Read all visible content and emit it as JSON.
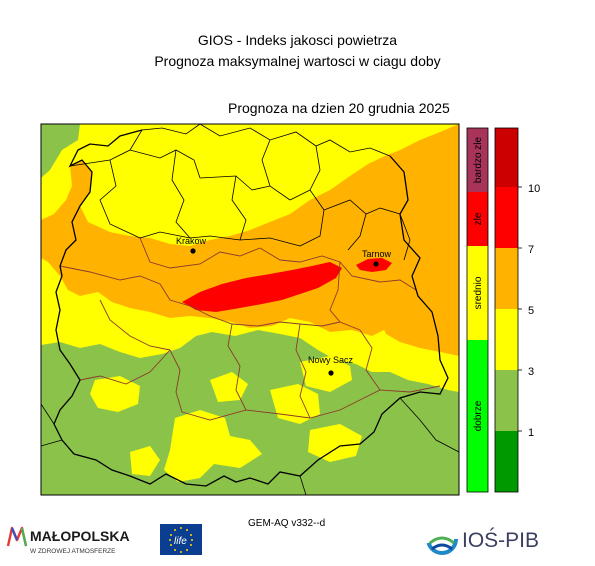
{
  "header": {
    "title_line1": "GIOS - Indeks jakosci powietrza",
    "title_line2": "Prognoza maksymalnej wartosci w ciagu doby",
    "forecast_label": "Prognoza na dzien  20 grudnia 2025"
  },
  "map": {
    "cities": [
      {
        "name": "Krakow"
      },
      {
        "name": "Tarnow"
      },
      {
        "name": "Nowy Sacz"
      }
    ]
  },
  "legend": {
    "categories": [
      {
        "label": "bardzo zle",
        "color": "#a8345a"
      },
      {
        "label": "zle",
        "color": "#ff0000"
      },
      {
        "label": "srednio",
        "color": "#ffff00"
      },
      {
        "label": "dobrze",
        "color": "#00ff00"
      }
    ],
    "scale_colors": [
      "#009900",
      "#8bc34a",
      "#ffff00",
      "#ffb300",
      "#ff0000",
      "#cc0000"
    ],
    "scale_ticks": [
      "1",
      "3",
      "5",
      "7",
      "10"
    ]
  },
  "footer": {
    "model_version": "GEM-AQ v332--d",
    "malopolska_name": "MAŁOPOLSKA",
    "malopolska_tagline": "W ZDROWEJ ATMOSFERZE",
    "life_logo": "life",
    "iospib_name": "IOŚ-PIB"
  },
  "colors": {
    "green_zone": "#8bc34a",
    "yellow_zone": "#ffff00",
    "orange_zone": "#ffb300",
    "red_zone": "#ff0000"
  }
}
